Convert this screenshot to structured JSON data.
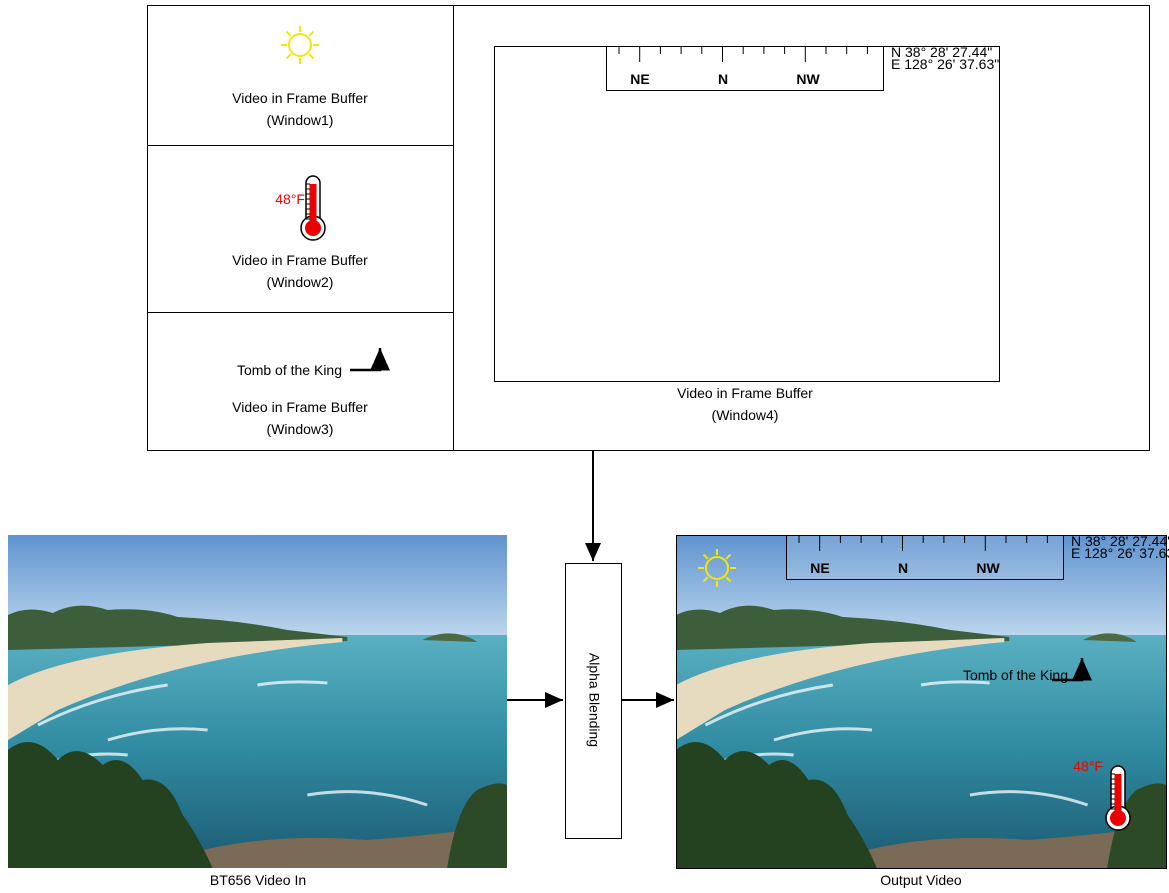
{
  "windows": [
    {
      "label": "Video in Frame Buffer",
      "id": "(Window1)"
    },
    {
      "label": "Video in Frame Buffer",
      "id": "(Window2)",
      "overlay": "48°F"
    },
    {
      "label": "Video in Frame Buffer",
      "id": "(Window3)",
      "overlay": "Tomb of the King"
    },
    {
      "label": "Video in Frame Buffer",
      "id": "(Window4)"
    }
  ],
  "compass": {
    "labels": [
      "NE",
      "N",
      "NW"
    ],
    "lat": "N  38° 28' 27.44\"",
    "lon": "E 128° 26' 37.63\""
  },
  "blend": "Alpha Blending",
  "input": "BT656 Video In",
  "output": "Output Video"
}
